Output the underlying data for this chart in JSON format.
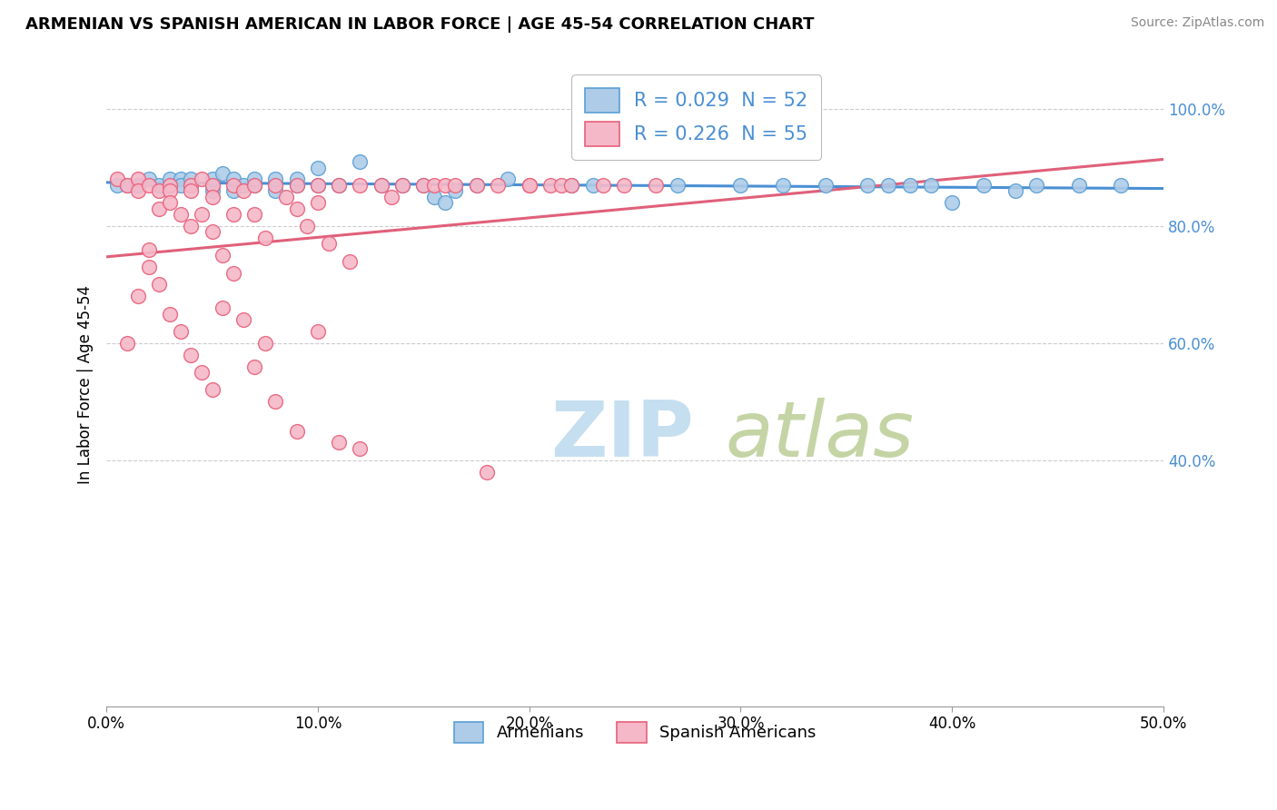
{
  "title": "ARMENIAN VS SPANISH AMERICAN IN LABOR FORCE | AGE 45-54 CORRELATION CHART",
  "source": "Source: ZipAtlas.com",
  "ylabel": "In Labor Force | Age 45-54",
  "xlim": [
    0.0,
    0.5
  ],
  "ylim": [
    -0.02,
    1.08
  ],
  "xtick_labels": [
    "0.0%",
    "10.0%",
    "20.0%",
    "30.0%",
    "40.0%",
    "50.0%"
  ],
  "xtick_vals": [
    0.0,
    0.1,
    0.2,
    0.3,
    0.4,
    0.5
  ],
  "ytick_labels": [
    "40.0%",
    "60.0%",
    "80.0%",
    "100.0%"
  ],
  "ytick_vals": [
    0.4,
    0.6,
    0.8,
    1.0
  ],
  "armenian_color": "#aecce8",
  "spanish_color": "#f5b8c8",
  "armenian_edge_color": "#5b9fd4",
  "spanish_edge_color": "#e8607a",
  "armenian_line_color": "#4a8fd4",
  "spanish_line_color": "#e0607a",
  "legend_armenian_label": "R = 0.029  N = 52",
  "legend_spanish_label": "R = 0.226  N = 55",
  "legend_armenians": "Armenians",
  "legend_spanish": "Spanish Americans",
  "armenian_x": [
    0.005,
    0.01,
    0.015,
    0.02,
    0.025,
    0.03,
    0.03,
    0.035,
    0.035,
    0.04,
    0.04,
    0.05,
    0.05,
    0.05,
    0.055,
    0.06,
    0.06,
    0.065,
    0.07,
    0.07,
    0.08,
    0.08,
    0.09,
    0.09,
    0.1,
    0.1,
    0.11,
    0.12,
    0.13,
    0.14,
    0.15,
    0.155,
    0.16,
    0.165,
    0.175,
    0.19,
    0.22,
    0.23,
    0.27,
    0.3,
    0.32,
    0.34,
    0.36,
    0.37,
    0.38,
    0.39,
    0.4,
    0.415,
    0.43,
    0.44,
    0.46,
    0.48
  ],
  "armenian_y": [
    0.87,
    0.87,
    0.87,
    0.88,
    0.87,
    0.87,
    0.88,
    0.88,
    0.87,
    0.87,
    0.88,
    0.86,
    0.87,
    0.88,
    0.89,
    0.86,
    0.88,
    0.87,
    0.87,
    0.88,
    0.86,
    0.88,
    0.87,
    0.88,
    0.87,
    0.9,
    0.87,
    0.91,
    0.87,
    0.87,
    0.87,
    0.85,
    0.84,
    0.86,
    0.87,
    0.88,
    0.87,
    0.87,
    0.87,
    0.87,
    0.87,
    0.87,
    0.87,
    0.87,
    0.87,
    0.87,
    0.84,
    0.87,
    0.86,
    0.87,
    0.87,
    0.87
  ],
  "spanish_x": [
    0.005,
    0.01,
    0.015,
    0.015,
    0.02,
    0.02,
    0.025,
    0.025,
    0.03,
    0.03,
    0.03,
    0.035,
    0.04,
    0.04,
    0.04,
    0.045,
    0.045,
    0.05,
    0.05,
    0.05,
    0.055,
    0.06,
    0.06,
    0.065,
    0.07,
    0.07,
    0.075,
    0.08,
    0.085,
    0.09,
    0.09,
    0.095,
    0.1,
    0.1,
    0.105,
    0.11,
    0.115,
    0.12,
    0.13,
    0.135,
    0.14,
    0.15,
    0.155,
    0.16,
    0.165,
    0.175,
    0.185,
    0.2,
    0.2,
    0.21,
    0.215,
    0.22,
    0.235,
    0.245,
    0.26
  ],
  "spanish_y": [
    0.88,
    0.87,
    0.88,
    0.86,
    0.87,
    0.76,
    0.86,
    0.83,
    0.87,
    0.86,
    0.84,
    0.82,
    0.87,
    0.86,
    0.8,
    0.88,
    0.82,
    0.87,
    0.85,
    0.79,
    0.75,
    0.87,
    0.82,
    0.86,
    0.87,
    0.82,
    0.78,
    0.87,
    0.85,
    0.87,
    0.83,
    0.8,
    0.87,
    0.84,
    0.77,
    0.87,
    0.74,
    0.87,
    0.87,
    0.85,
    0.87,
    0.87,
    0.87,
    0.87,
    0.87,
    0.87,
    0.87,
    0.87,
    0.87,
    0.87,
    0.87,
    0.87,
    0.87,
    0.87,
    0.87
  ],
  "spanish_low_x": [
    0.01,
    0.015,
    0.02,
    0.025,
    0.03,
    0.035,
    0.04,
    0.045,
    0.05,
    0.055,
    0.06,
    0.065,
    0.07,
    0.075,
    0.08,
    0.09,
    0.1,
    0.11,
    0.12,
    0.18
  ],
  "spanish_low_y": [
    0.6,
    0.68,
    0.73,
    0.7,
    0.65,
    0.62,
    0.58,
    0.55,
    0.52,
    0.66,
    0.72,
    0.64,
    0.56,
    0.6,
    0.5,
    0.45,
    0.62,
    0.43,
    0.42,
    0.38
  ]
}
